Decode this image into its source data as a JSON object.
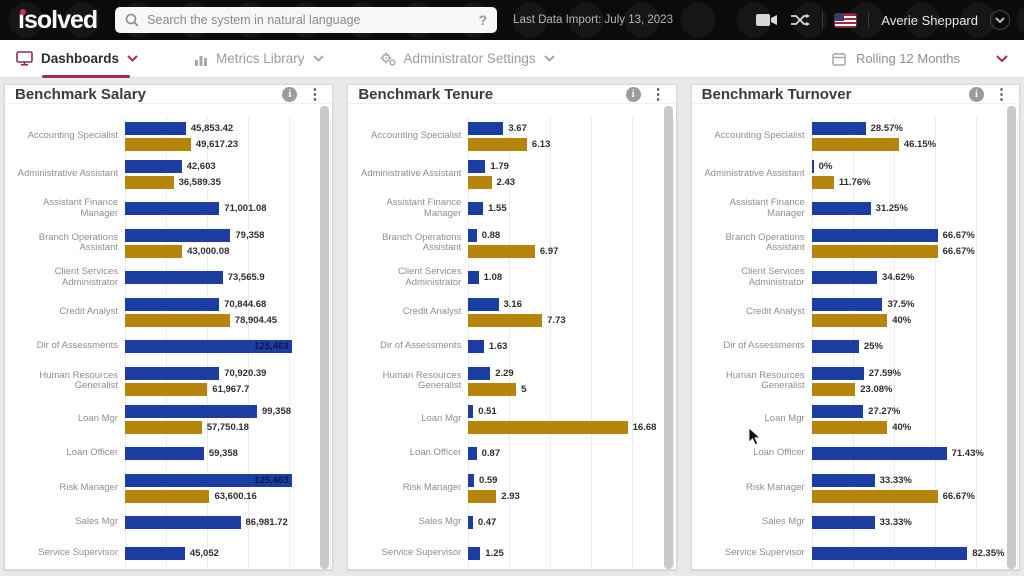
{
  "header": {
    "logo_text": "isolved",
    "search_placeholder": "Search the system in natural language",
    "search_help": "?",
    "last_import": "Last Data Import: July 13, 2023",
    "user_name": "Averie Sheppard"
  },
  "nav": {
    "items": [
      {
        "label": "Dashboards",
        "active": true
      },
      {
        "label": "Metrics Library",
        "active": false
      },
      {
        "label": "Administrator Settings",
        "active": false
      }
    ],
    "period_label": "Rolling 12 Months"
  },
  "colors": {
    "company_bar": "#1c3ea3",
    "benchmark_bar": "#b5860b",
    "accent": "#a12a5e",
    "logo_dot": "#c22f6c"
  },
  "chart_data": [
    {
      "type": "bar",
      "orientation": "horizontal",
      "title": "Benchmark Salary",
      "axis_max": 128000,
      "grid": true,
      "rows": [
        {
          "label": "Accounting Specialist",
          "company": 45853.42,
          "company_label": "45,853.42",
          "benchmark": 49617.23,
          "benchmark_label": "49,617.23"
        },
        {
          "label": "Administrative Assistant",
          "company": 42603,
          "company_label": "42,603",
          "benchmark": 36589.35,
          "benchmark_label": "36,589.35"
        },
        {
          "label": "Assistant Finance Manager",
          "company": 71001.08,
          "company_label": "71,001.08",
          "benchmark": null,
          "benchmark_label": null
        },
        {
          "label": "Branch Operations Assistant",
          "company": 79358,
          "company_label": "79,358",
          "benchmark": 43000.08,
          "benchmark_label": "43,000.08"
        },
        {
          "label": "Client Services Administrator",
          "company": 73565.9,
          "company_label": "73,565.9",
          "benchmark": null,
          "benchmark_label": null
        },
        {
          "label": "Credit Analyst",
          "company": 70844.68,
          "company_label": "70,844.68",
          "benchmark": 78904.45,
          "benchmark_label": "78,904.45"
        },
        {
          "label": "Dir of Assessments",
          "company": 125463,
          "company_label": "125,463",
          "benchmark": null,
          "benchmark_label": null,
          "company_inside": true
        },
        {
          "label": "Human Resources Generalist",
          "company": 70920.39,
          "company_label": "70,920.39",
          "benchmark": 61967.7,
          "benchmark_label": "61,967.7"
        },
        {
          "label": "Loan Mgr",
          "company": 99358,
          "company_label": "99,358",
          "benchmark": 57750.18,
          "benchmark_label": "57,750.18"
        },
        {
          "label": "Loan Officer",
          "company": 59358,
          "company_label": "59,358",
          "benchmark": null,
          "benchmark_label": null
        },
        {
          "label": "Risk Manager",
          "company": 125463,
          "company_label": "125,463",
          "benchmark": 63600.16,
          "benchmark_label": "63,600.16",
          "company_inside": true
        },
        {
          "label": "Sales Mgr",
          "company": 86981.72,
          "company_label": "86,981.72",
          "benchmark": null,
          "benchmark_label": null
        },
        {
          "label": "Service Supervisor",
          "company": 45052,
          "company_label": "45,052",
          "benchmark": null,
          "benchmark_label": null
        }
      ]
    },
    {
      "type": "bar",
      "orientation": "horizontal",
      "title": "Benchmark Tenure",
      "axis_max": 17.8,
      "grid": true,
      "rows": [
        {
          "label": "Accounting Specialist",
          "company": 3.67,
          "company_label": "3.67",
          "benchmark": 6.13,
          "benchmark_label": "6.13"
        },
        {
          "label": "Administrative Assistant",
          "company": 1.79,
          "company_label": "1.79",
          "benchmark": 2.43,
          "benchmark_label": "2.43"
        },
        {
          "label": "Assistant Finance Manager",
          "company": 1.55,
          "company_label": "1.55",
          "benchmark": null,
          "benchmark_label": null
        },
        {
          "label": "Branch Operations Assistant",
          "company": 0.88,
          "company_label": "0.88",
          "benchmark": 6.97,
          "benchmark_label": "6.97"
        },
        {
          "label": "Client Services Administrator",
          "company": 1.08,
          "company_label": "1.08",
          "benchmark": null,
          "benchmark_label": null
        },
        {
          "label": "Credit Analyst",
          "company": 3.16,
          "company_label": "3.16",
          "benchmark": 7.73,
          "benchmark_label": "7.73"
        },
        {
          "label": "Dir of Assessments",
          "company": 1.63,
          "company_label": "1.63",
          "benchmark": null,
          "benchmark_label": null
        },
        {
          "label": "Human Resources Generalist",
          "company": 2.29,
          "company_label": "2.29",
          "benchmark": 5,
          "benchmark_label": "5"
        },
        {
          "label": "Loan Mgr",
          "company": 0.51,
          "company_label": "0.51",
          "benchmark": 16.68,
          "benchmark_label": "16.68"
        },
        {
          "label": "Loan Officer",
          "company": 0.87,
          "company_label": "0.87",
          "benchmark": null,
          "benchmark_label": null
        },
        {
          "label": "Risk Manager",
          "company": 0.59,
          "company_label": "0.59",
          "benchmark": 2.93,
          "benchmark_label": "2.93"
        },
        {
          "label": "Sales Mgr",
          "company": 0.47,
          "company_label": "0.47",
          "benchmark": null,
          "benchmark_label": null
        },
        {
          "label": "Service Supervisor",
          "company": 1.25,
          "company_label": "1.25",
          "benchmark": null,
          "benchmark_label": null
        }
      ]
    },
    {
      "type": "bar",
      "orientation": "horizontal",
      "title": "Benchmark Turnover",
      "axis_max": 90,
      "grid": true,
      "rows": [
        {
          "label": "Accounting Specialist",
          "company": 28.57,
          "company_label": "28.57%",
          "benchmark": 46.15,
          "benchmark_label": "46.15%"
        },
        {
          "label": "Administrative Assistant",
          "company": 0,
          "company_label": "0%",
          "benchmark": 11.76,
          "benchmark_label": "11.76%"
        },
        {
          "label": "Assistant Finance Manager",
          "company": 31.25,
          "company_label": "31.25%",
          "benchmark": null,
          "benchmark_label": null
        },
        {
          "label": "Branch Operations Assistant",
          "company": 66.67,
          "company_label": "66.67%",
          "benchmark": 66.67,
          "benchmark_label": "66.67%"
        },
        {
          "label": "Client Services Administrator",
          "company": 34.62,
          "company_label": "34.62%",
          "benchmark": null,
          "benchmark_label": null
        },
        {
          "label": "Credit Analyst",
          "company": 37.5,
          "company_label": "37.5%",
          "benchmark": 40,
          "benchmark_label": "40%"
        },
        {
          "label": "Dir of Assessments",
          "company": 25,
          "company_label": "25%",
          "benchmark": null,
          "benchmark_label": null
        },
        {
          "label": "Human Resources Generalist",
          "company": 27.59,
          "company_label": "27.59%",
          "benchmark": 23.08,
          "benchmark_label": "23.08%"
        },
        {
          "label": "Loan Mgr",
          "company": 27.27,
          "company_label": "27.27%",
          "benchmark": 40,
          "benchmark_label": "40%"
        },
        {
          "label": "Loan Officer",
          "company": 71.43,
          "company_label": "71.43%",
          "benchmark": null,
          "benchmark_label": null
        },
        {
          "label": "Risk Manager",
          "company": 33.33,
          "company_label": "33.33%",
          "benchmark": 66.67,
          "benchmark_label": "66.67%"
        },
        {
          "label": "Sales Mgr",
          "company": 33.33,
          "company_label": "33.33%",
          "benchmark": null,
          "benchmark_label": null
        },
        {
          "label": "Service Supervisor",
          "company": 82.35,
          "company_label": "82.35%",
          "benchmark": null,
          "benchmark_label": null
        }
      ]
    }
  ]
}
